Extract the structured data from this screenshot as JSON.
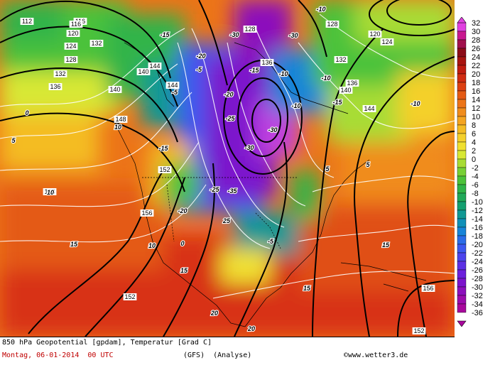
{
  "footer": {
    "title": "850 hPa Geopotential [gpdam], Temperatur [Grad C]",
    "date": "Montag, 06-01-2014  00 UTC",
    "model": "(GFS)  (Analyse)",
    "credit": "©www.wetter3.de"
  },
  "legend": {
    "ticks": [
      "32",
      "30",
      "28",
      "26",
      "24",
      "22",
      "20",
      "18",
      "16",
      "14",
      "12",
      "10",
      "8",
      "6",
      "4",
      "2",
      "0",
      "-2",
      "-4",
      "-6",
      "-8",
      "-10",
      "-12",
      "-14",
      "-16",
      "-18",
      "-20",
      "-22",
      "-24",
      "-26",
      "-28",
      "-30",
      "-32",
      "-34",
      "-36"
    ],
    "colors": [
      "#e040e0",
      "#c81890",
      "#a0104c",
      "#8c0c18",
      "#a81410",
      "#c01c10",
      "#d02c12",
      "#dc4012",
      "#e45a14",
      "#ec7418",
      "#f08c1c",
      "#f4a420",
      "#f4bc24",
      "#f4d02c",
      "#f0e030",
      "#d8e834",
      "#a8dc34",
      "#78d036",
      "#4cc23a",
      "#30b448",
      "#20a858",
      "#14a070",
      "#109894",
      "#1090b8",
      "#1884d8",
      "#2a6ce8",
      "#3c58f0",
      "#4c44ec",
      "#5c30e4",
      "#6c20dc",
      "#7c14cc",
      "#8c10bc",
      "#9c0cac",
      "#a8089c"
    ]
  },
  "map": {
    "geopotential_labels": [
      "112",
      "116",
      "120",
      "124",
      "128",
      "132",
      "136",
      "140",
      "144",
      "148",
      "152",
      "156",
      "116",
      "120",
      "124",
      "128",
      "132",
      "136",
      "140",
      "144",
      "148",
      "152"
    ],
    "temperature_labels": [
      "-35",
      "-30",
      "-25",
      "-20",
      "-15",
      "-10",
      "-5",
      "0",
      "5",
      "10",
      "15",
      "20",
      "25"
    ],
    "labels": [
      {
        "t": "112",
        "k": "g"
      },
      {
        "t": "116",
        "k": "g"
      },
      {
        "t": "120",
        "k": "g"
      },
      {
        "t": "124",
        "k": "g"
      },
      {
        "t": "128",
        "k": "g"
      },
      {
        "t": "132",
        "k": "g"
      },
      {
        "t": "136",
        "k": "g"
      },
      {
        "t": "140",
        "k": "g"
      },
      {
        "t": "144",
        "k": "g"
      },
      {
        "t": "148",
        "k": "g"
      },
      {
        "t": "152",
        "k": "g"
      },
      {
        "t": "156",
        "k": "g"
      },
      {
        "t": "128",
        "k": "g"
      },
      {
        "t": "132",
        "k": "g"
      },
      {
        "t": "136",
        "k": "g"
      },
      {
        "t": "140",
        "k": "g"
      },
      {
        "t": "144",
        "k": "g"
      },
      {
        "t": "148",
        "k": "g"
      },
      {
        "t": "152",
        "k": "g"
      },
      {
        "t": "120",
        "k": "g"
      },
      {
        "t": "124",
        "k": "g"
      },
      {
        "t": "116",
        "k": "g"
      },
      {
        "t": "128",
        "k": "g"
      },
      {
        "t": "132",
        "k": "g"
      },
      {
        "t": "136",
        "k": "g"
      },
      {
        "t": "140",
        "k": "g"
      },
      {
        "t": "144",
        "k": "g"
      },
      {
        "t": "152",
        "k": "g"
      },
      {
        "t": "156",
        "k": "g"
      },
      {
        "t": "-35",
        "k": "t"
      },
      {
        "t": "-30",
        "k": "t"
      },
      {
        "t": "-30",
        "k": "t"
      },
      {
        "t": "-30",
        "k": "t"
      },
      {
        "t": "-30",
        "k": "t"
      },
      {
        "t": "-25",
        "k": "t"
      },
      {
        "t": "-25",
        "k": "t"
      },
      {
        "t": "-20",
        "k": "t"
      },
      {
        "t": "-20",
        "k": "t"
      },
      {
        "t": "-20",
        "k": "t"
      },
      {
        "t": "-15",
        "k": "t"
      },
      {
        "t": "-15",
        "k": "t"
      },
      {
        "t": "-15",
        "k": "t"
      },
      {
        "t": "-10",
        "k": "t"
      },
      {
        "t": "-10",
        "k": "t"
      },
      {
        "t": "-10",
        "k": "t"
      },
      {
        "t": "-5",
        "k": "t"
      },
      {
        "t": "-5",
        "k": "t"
      },
      {
        "t": "0",
        "k": "t"
      },
      {
        "t": "0",
        "k": "t"
      },
      {
        "t": "5",
        "k": "t"
      },
      {
        "t": "5",
        "k": "t"
      },
      {
        "t": "5",
        "k": "t"
      },
      {
        "t": "10",
        "k": "t"
      },
      {
        "t": "10",
        "k": "t"
      },
      {
        "t": "10",
        "k": "t"
      },
      {
        "t": "15",
        "k": "t"
      },
      {
        "t": "15",
        "k": "t"
      },
      {
        "t": "15",
        "k": "t"
      },
      {
        "t": "15",
        "k": "t"
      },
      {
        "t": "20",
        "k": "t"
      },
      {
        "t": "20",
        "k": "t"
      },
      {
        "t": "25",
        "k": "t"
      },
      {
        "t": "-10",
        "k": "t"
      },
      {
        "t": "-15",
        "k": "t"
      },
      {
        "t": "-5",
        "k": "t"
      },
      {
        "t": "-10",
        "k": "t"
      }
    ]
  }
}
